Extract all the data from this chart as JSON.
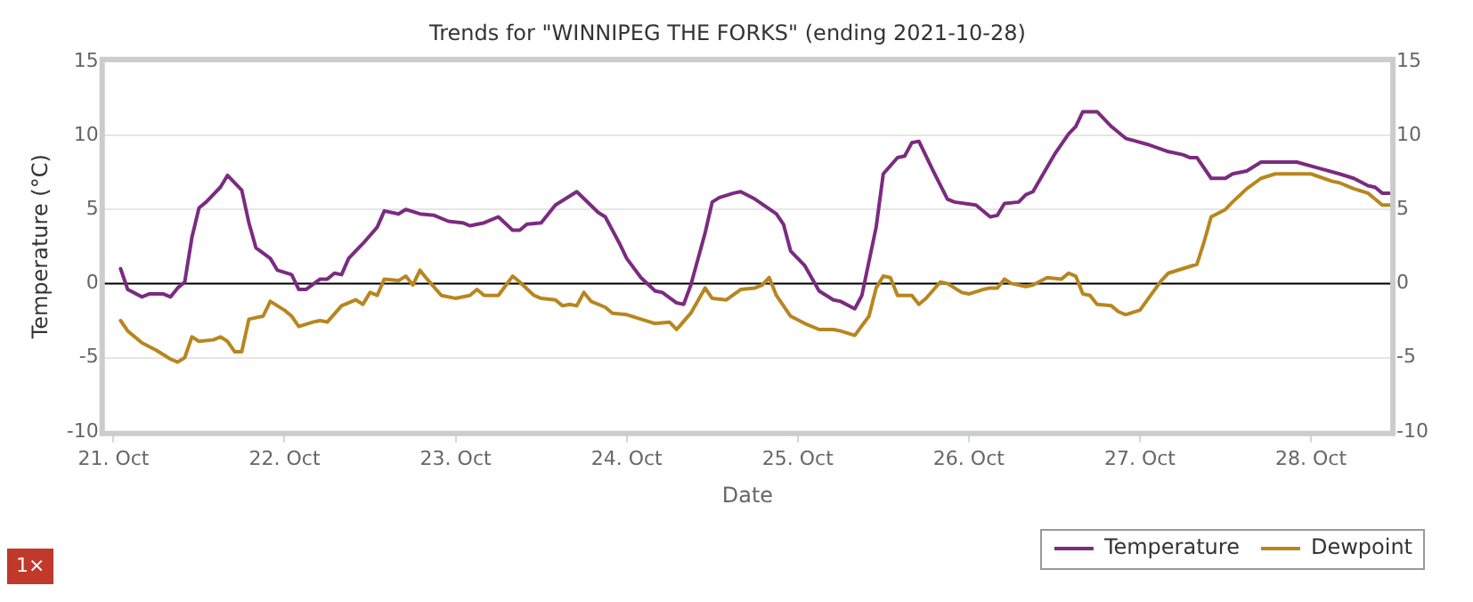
{
  "chart_data": {
    "type": "line",
    "title": "Trends for \"WINNIPEG THE FORKS\" (ending 2021-10-28)",
    "xlabel": "Date",
    "ylabel": "Temperature (°C)",
    "xlim": [
      "2021-10-20T22:40",
      "2021-10-28T11:15"
    ],
    "xticks": [
      {
        "value": "2021-10-21",
        "label": "21. Oct"
      },
      {
        "value": "2021-10-22",
        "label": "22. Oct"
      },
      {
        "value": "2021-10-23",
        "label": "23. Oct"
      },
      {
        "value": "2021-10-24",
        "label": "24. Oct"
      },
      {
        "value": "2021-10-25",
        "label": "25. Oct"
      },
      {
        "value": "2021-10-26",
        "label": "26. Oct"
      },
      {
        "value": "2021-10-27",
        "label": "27. Oct"
      },
      {
        "value": "2021-10-28",
        "label": "28. Oct"
      }
    ],
    "ylim": [
      -10,
      15
    ],
    "yticks": [
      -10,
      -5,
      0,
      5,
      10,
      15
    ],
    "y2lim": [
      -10,
      15
    ],
    "y2ticks": [
      -10,
      -5,
      0,
      5,
      10,
      15
    ],
    "grid": "y",
    "legend": "bottom right",
    "marker": "none",
    "line_style": "solid",
    "ref_lines": [
      {
        "axis": "y",
        "value": 0,
        "color": "#000000"
      }
    ],
    "annotations": [
      "1×"
    ],
    "series": [
      {
        "name": "Temperature",
        "color": "#7b2b80",
        "x": [
          "2021-10-21T01:00",
          "2021-10-21T02:00",
          "2021-10-21T04:00",
          "2021-10-21T05:00",
          "2021-10-21T07:00",
          "2021-10-21T08:00",
          "2021-10-21T09:00",
          "2021-10-21T10:00",
          "2021-10-21T11:00",
          "2021-10-21T12:00",
          "2021-10-21T13:00",
          "2021-10-21T15:00",
          "2021-10-21T16:00",
          "2021-10-21T18:00",
          "2021-10-21T19:00",
          "2021-10-21T20:00",
          "2021-10-21T22:00",
          "2021-10-21T23:00",
          "2021-10-22T01:00",
          "2021-10-22T02:00",
          "2021-10-22T03:00",
          "2021-10-22T05:00",
          "2021-10-22T06:00",
          "2021-10-22T07:00",
          "2021-10-22T08:00",
          "2021-10-22T09:00",
          "2021-10-22T11:00",
          "2021-10-22T13:00",
          "2021-10-22T14:00",
          "2021-10-22T16:00",
          "2021-10-22T17:00",
          "2021-10-22T19:00",
          "2021-10-22T21:00",
          "2021-10-22T23:00",
          "2021-10-23T01:00",
          "2021-10-23T02:00",
          "2021-10-23T04:00",
          "2021-10-23T06:00",
          "2021-10-23T08:00",
          "2021-10-23T09:00",
          "2021-10-23T10:00",
          "2021-10-23T12:00",
          "2021-10-23T14:00",
          "2021-10-23T17:00",
          "2021-10-23T20:00",
          "2021-10-23T21:00",
          "2021-10-23T23:00",
          "2021-10-24T00:00",
          "2021-10-24T02:00",
          "2021-10-24T04:00",
          "2021-10-24T05:00",
          "2021-10-24T07:00",
          "2021-10-24T08:00",
          "2021-10-24T09:00",
          "2021-10-24T11:00",
          "2021-10-24T12:00",
          "2021-10-24T13:00",
          "2021-10-24T15:00",
          "2021-10-24T16:00",
          "2021-10-24T18:00",
          "2021-10-24T21:00",
          "2021-10-24T22:00",
          "2021-10-24T23:00",
          "2021-10-25T01:00",
          "2021-10-25T03:00",
          "2021-10-25T05:00",
          "2021-10-25T06:00",
          "2021-10-25T08:00",
          "2021-10-25T09:00",
          "2021-10-25T11:00",
          "2021-10-25T12:00",
          "2021-10-25T14:00",
          "2021-10-25T15:00",
          "2021-10-25T16:00",
          "2021-10-25T17:00",
          "2021-10-25T19:00",
          "2021-10-25T21:00",
          "2021-10-25T22:00",
          "2021-10-26T01:00",
          "2021-10-26T03:00",
          "2021-10-26T04:00",
          "2021-10-26T05:00",
          "2021-10-26T07:00",
          "2021-10-26T08:00",
          "2021-10-26T09:00",
          "2021-10-26T12:00",
          "2021-10-26T14:00",
          "2021-10-26T15:00",
          "2021-10-26T16:00",
          "2021-10-26T18:00",
          "2021-10-26T20:00",
          "2021-10-26T22:00",
          "2021-10-27T01:00",
          "2021-10-27T04:00",
          "2021-10-27T06:00",
          "2021-10-27T07:00",
          "2021-10-27T08:00",
          "2021-10-27T10:00",
          "2021-10-27T12:00",
          "2021-10-27T13:00",
          "2021-10-27T15:00",
          "2021-10-27T17:00",
          "2021-10-27T20:00",
          "2021-10-27T22:00",
          "2021-10-28T01:00",
          "2021-10-28T04:00",
          "2021-10-28T06:00",
          "2021-10-28T08:00",
          "2021-10-28T09:00",
          "2021-10-28T10:00",
          "2021-10-28T11:00"
        ],
        "values": [
          1.0,
          -0.4,
          -0.9,
          -0.7,
          -0.7,
          -0.9,
          -0.3,
          0.1,
          3.1,
          5.1,
          5.5,
          6.5,
          7.3,
          6.3,
          4.1,
          2.4,
          1.7,
          0.9,
          0.6,
          -0.4,
          -0.4,
          0.3,
          0.3,
          0.7,
          0.6,
          1.7,
          2.7,
          3.8,
          4.9,
          4.7,
          5.0,
          4.7,
          4.6,
          4.2,
          4.1,
          3.9,
          4.1,
          4.5,
          3.6,
          3.6,
          4.0,
          4.1,
          5.3,
          6.2,
          4.8,
          4.5,
          2.7,
          1.7,
          0.4,
          -0.5,
          -0.6,
          -1.3,
          -1.4,
          -0.1,
          3.4,
          5.5,
          5.8,
          6.1,
          6.2,
          5.7,
          4.7,
          4.0,
          2.2,
          1.2,
          -0.5,
          -1.1,
          -1.2,
          -1.7,
          -0.8,
          3.8,
          7.4,
          8.5,
          8.6,
          9.5,
          9.6,
          7.6,
          5.7,
          5.5,
          5.3,
          4.5,
          4.6,
          5.4,
          5.5,
          6.0,
          6.2,
          8.7,
          10.1,
          10.6,
          11.6,
          11.6,
          10.6,
          9.8,
          9.4,
          8.9,
          8.7,
          8.5,
          8.5,
          7.1,
          7.1,
          7.4,
          7.6,
          8.2,
          8.2,
          8.2,
          7.8,
          7.4,
          7.1,
          6.6,
          6.5,
          6.1,
          6.1
        ]
      },
      {
        "name": "Dewpoint",
        "color": "#b8861f",
        "x": [
          "2021-10-21T01:00",
          "2021-10-21T02:00",
          "2021-10-21T04:00",
          "2021-10-21T06:00",
          "2021-10-21T08:00",
          "2021-10-21T09:00",
          "2021-10-21T10:00",
          "2021-10-21T11:00",
          "2021-10-21T12:00",
          "2021-10-21T14:00",
          "2021-10-21T15:00",
          "2021-10-21T16:00",
          "2021-10-21T17:00",
          "2021-10-21T18:00",
          "2021-10-21T19:00",
          "2021-10-21T21:00",
          "2021-10-21T22:00",
          "2021-10-22T00:00",
          "2021-10-22T01:00",
          "2021-10-22T02:00",
          "2021-10-22T04:00",
          "2021-10-22T05:00",
          "2021-10-22T06:00",
          "2021-10-22T08:00",
          "2021-10-22T10:00",
          "2021-10-22T11:00",
          "2021-10-22T12:00",
          "2021-10-22T13:00",
          "2021-10-22T14:00",
          "2021-10-22T16:00",
          "2021-10-22T17:00",
          "2021-10-22T18:00",
          "2021-10-22T19:00",
          "2021-10-22T20:00",
          "2021-10-22T22:00",
          "2021-10-23T00:00",
          "2021-10-23T02:00",
          "2021-10-23T03:00",
          "2021-10-23T04:00",
          "2021-10-23T06:00",
          "2021-10-23T08:00",
          "2021-10-23T09:00",
          "2021-10-23T11:00",
          "2021-10-23T12:00",
          "2021-10-23T14:00",
          "2021-10-23T15:00",
          "2021-10-23T16:00",
          "2021-10-23T17:00",
          "2021-10-23T18:00",
          "2021-10-23T19:00",
          "2021-10-23T21:00",
          "2021-10-23T22:00",
          "2021-10-24T00:00",
          "2021-10-24T02:00",
          "2021-10-24T04:00",
          "2021-10-24T06:00",
          "2021-10-24T07:00",
          "2021-10-24T09:00",
          "2021-10-24T11:00",
          "2021-10-24T12:00",
          "2021-10-24T14:00",
          "2021-10-24T16:00",
          "2021-10-24T18:00",
          "2021-10-24T19:00",
          "2021-10-24T20:00",
          "2021-10-24T21:00",
          "2021-10-24T23:00",
          "2021-10-25T01:00",
          "2021-10-25T03:00",
          "2021-10-25T05:00",
          "2021-10-25T06:00",
          "2021-10-25T08:00",
          "2021-10-25T10:00",
          "2021-10-25T11:00",
          "2021-10-25T12:00",
          "2021-10-25T13:00",
          "2021-10-25T14:00",
          "2021-10-25T16:00",
          "2021-10-25T17:00",
          "2021-10-25T18:00",
          "2021-10-25T20:00",
          "2021-10-25T21:00",
          "2021-10-25T23:00",
          "2021-10-26T00:00",
          "2021-10-26T02:00",
          "2021-10-26T03:00",
          "2021-10-26T04:00",
          "2021-10-26T05:00",
          "2021-10-26T06:00",
          "2021-10-26T08:00",
          "2021-10-26T09:00",
          "2021-10-26T11:00",
          "2021-10-26T13:00",
          "2021-10-26T14:00",
          "2021-10-26T15:00",
          "2021-10-26T16:00",
          "2021-10-26T17:00",
          "2021-10-26T18:00",
          "2021-10-26T20:00",
          "2021-10-26T21:00",
          "2021-10-26T22:00",
          "2021-10-27T00:00",
          "2021-10-27T03:00",
          "2021-10-27T04:00",
          "2021-10-27T06:00",
          "2021-10-27T08:00",
          "2021-10-27T09:00",
          "2021-10-27T10:00",
          "2021-10-27T12:00",
          "2021-10-27T13:00",
          "2021-10-27T15:00",
          "2021-10-27T17:00",
          "2021-10-27T19:00",
          "2021-10-27T21:00",
          "2021-10-28T00:00",
          "2021-10-28T03:00",
          "2021-10-28T04:00",
          "2021-10-28T06:00",
          "2021-10-28T08:00",
          "2021-10-28T09:00",
          "2021-10-28T10:00",
          "2021-10-28T11:00"
        ],
        "values": [
          -2.5,
          -3.2,
          -4.0,
          -4.5,
          -5.1,
          -5.3,
          -5.0,
          -3.6,
          -3.9,
          -3.8,
          -3.6,
          -3.9,
          -4.6,
          -4.6,
          -2.4,
          -2.2,
          -1.2,
          -1.8,
          -2.2,
          -2.9,
          -2.6,
          -2.5,
          -2.6,
          -1.5,
          -1.1,
          -1.4,
          -0.6,
          -0.8,
          0.3,
          0.2,
          0.5,
          -0.1,
          0.9,
          0.3,
          -0.8,
          -1.0,
          -0.8,
          -0.4,
          -0.8,
          -0.8,
          0.5,
          0.1,
          -0.8,
          -1.0,
          -1.1,
          -1.5,
          -1.4,
          -1.5,
          -0.6,
          -1.2,
          -1.6,
          -2.0,
          -2.1,
          -2.4,
          -2.7,
          -2.6,
          -3.1,
          -2.0,
          -0.3,
          -1.0,
          -1.1,
          -0.4,
          -0.3,
          -0.1,
          0.4,
          -0.8,
          -2.2,
          -2.7,
          -3.1,
          -3.1,
          -3.2,
          -3.5,
          -2.2,
          -0.3,
          0.5,
          0.4,
          -0.8,
          -0.8,
          -1.4,
          -1.0,
          0.1,
          0.0,
          -0.6,
          -0.7,
          -0.4,
          -0.3,
          -0.3,
          0.3,
          0.0,
          -0.2,
          -0.1,
          0.4,
          0.3,
          0.7,
          0.5,
          -0.7,
          -0.8,
          -1.4,
          -1.5,
          -1.9,
          -2.1,
          -1.8,
          0.2,
          0.7,
          1.0,
          1.3,
          2.8,
          4.5,
          5.0,
          5.5,
          6.4,
          7.1,
          7.4,
          7.4,
          7.4,
          6.9,
          6.8,
          6.4,
          6.1,
          5.7,
          5.3,
          5.3
        ]
      }
    ]
  }
}
